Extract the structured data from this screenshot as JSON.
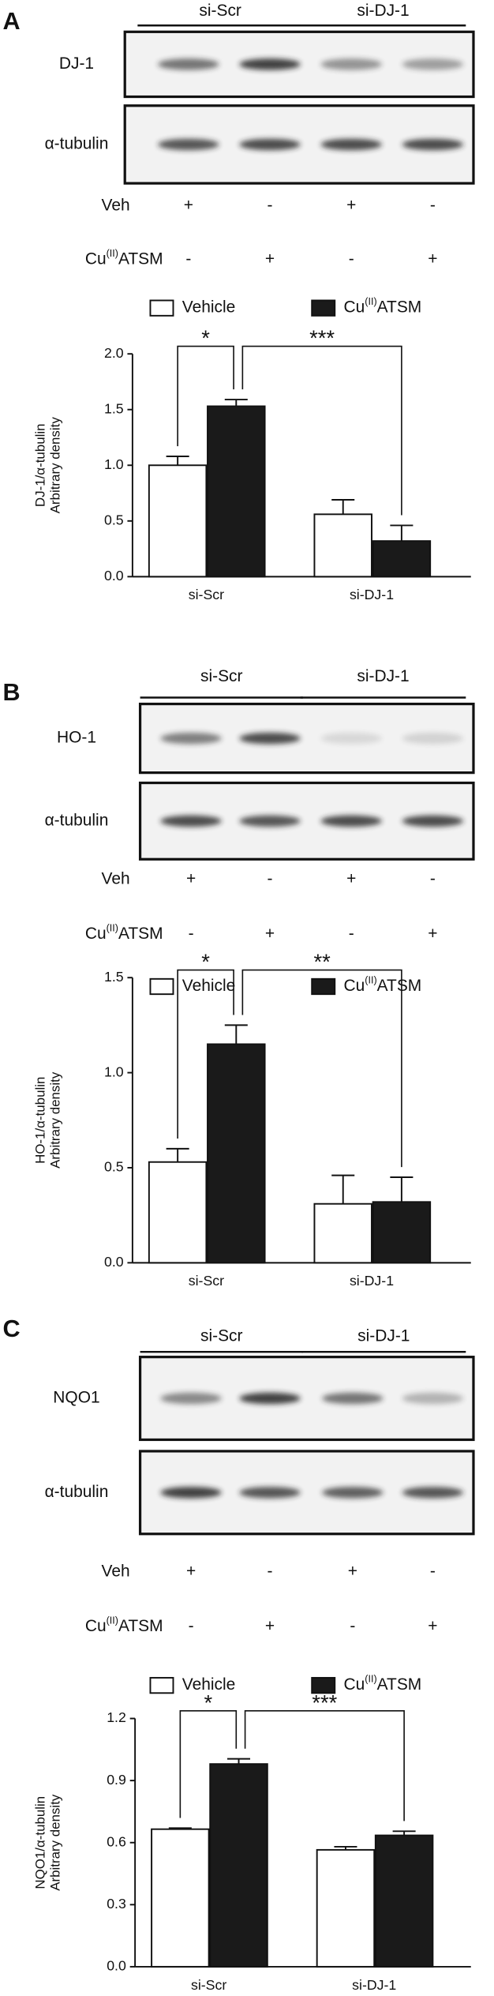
{
  "blots": [
    {
      "panel": "A",
      "groups": [
        "si-Scr",
        "si-DJ-1"
      ],
      "bands": [
        "DJ-1",
        "α-tubulin"
      ],
      "treatments": [
        {
          "name": "Veh",
          "signs": [
            "+",
            "-",
            "+",
            "-"
          ]
        },
        {
          "name": "Cu(II)ATSM",
          "signs": [
            "-",
            "+",
            "-",
            "+"
          ]
        }
      ]
    },
    {
      "panel": "B",
      "groups": [
        "si-Scr",
        "si-DJ-1"
      ],
      "bands": [
        "HO-1",
        "α-tubulin"
      ],
      "treatments": [
        {
          "name": "Veh",
          "signs": [
            "+",
            "-",
            "+",
            "-"
          ]
        },
        {
          "name": "Cu(II)ATSM",
          "signs": [
            "-",
            "+",
            "-",
            "+"
          ]
        }
      ]
    },
    {
      "panel": "C",
      "groups": [
        "si-Scr",
        "si-DJ-1"
      ],
      "bands": [
        "NQO1",
        "α-tubulin"
      ],
      "treatments": [
        {
          "name": "Veh",
          "signs": [
            "+",
            "-",
            "+",
            "-"
          ]
        },
        {
          "name": "Cu(II)ATSM",
          "signs": [
            "-",
            "+",
            "-",
            "+"
          ]
        }
      ]
    }
  ],
  "chart_data": [
    {
      "type": "bar",
      "ylabel": [
        "DJ-1/α-tubulin",
        "Arbitrary density"
      ],
      "categories": [
        "si-Scr",
        "si-DJ-1"
      ],
      "series": [
        {
          "name": "Vehicle",
          "color": "#ffffff",
          "values": [
            1.0,
            0.56
          ],
          "errors": [
            0.08,
            0.13
          ]
        },
        {
          "name": "Cu(II)ATSM",
          "color": "#1a1a1a",
          "values": [
            1.53,
            0.32
          ],
          "errors": [
            0.06,
            0.14
          ]
        }
      ],
      "ylim": [
        0,
        2
      ],
      "yticks": [
        {
          "value": 0,
          "label": "0.0"
        },
        0.5,
        {
          "value": 1,
          "label": "1.0"
        },
        1.5,
        {
          "value": 2,
          "label": "2.0"
        }
      ],
      "annotations": [
        "*",
        "***"
      ],
      "grid": false
    },
    {
      "type": "bar",
      "ylabel": [
        "HO-1/α-tubulin",
        "Arbitrary density"
      ],
      "categories": [
        "si-Scr",
        "si-DJ-1"
      ],
      "series": [
        {
          "name": "Vehicle",
          "color": "#ffffff",
          "values": [
            0.53,
            0.31
          ],
          "errors": [
            0.07,
            0.15
          ]
        },
        {
          "name": "Cu(II)ATSM",
          "color": "#1a1a1a",
          "values": [
            1.15,
            0.32
          ],
          "errors": [
            0.1,
            0.13
          ]
        }
      ],
      "ylim": [
        0,
        1.5
      ],
      "yticks": [
        {
          "value": 0,
          "label": "0.0"
        },
        0.5,
        {
          "value": 1,
          "label": "1.0"
        },
        1.5
      ],
      "annotations": [
        "*",
        "**"
      ],
      "grid": false
    },
    {
      "type": "bar",
      "ylabel": [
        "NQO1/α-tubulin",
        "Arbitrary density"
      ],
      "categories": [
        "si-Scr",
        "si-DJ-1"
      ],
      "series": [
        {
          "name": "Vehicle",
          "color": "#ffffff",
          "values": [
            0.665,
            0.565
          ],
          "errors": [
            0.005,
            0.015
          ]
        },
        {
          "name": "Cu(II)ATSM",
          "color": "#1a1a1a",
          "values": [
            0.98,
            0.635
          ],
          "errors": [
            0.025,
            0.02
          ]
        }
      ],
      "ylim": [
        0,
        1.2
      ],
      "yticks": [
        {
          "value": 0,
          "label": "0.0"
        },
        0.3,
        0.6,
        0.9,
        1.2
      ],
      "annotations": [
        "*",
        "***"
      ],
      "grid": false
    }
  ]
}
